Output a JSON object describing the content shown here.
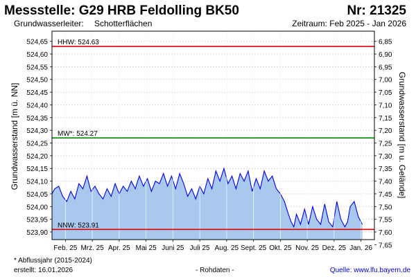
{
  "header": {
    "title": "Messstelle: G29 HRB Feldolling BK50",
    "number": "Nr: 21325",
    "aquifer_label": "Grundwasserleiter:",
    "aquifer_value": "Schotterflächen",
    "period": "Zeitraum: Feb 2025 - Jan 2026"
  },
  "footer": {
    "footnote": "* Abflussjahr (2015-2024)",
    "created": "erstellt:  16.01.2026",
    "raw": "- Rohdaten -",
    "source": "Quelle: www.lfu.bayern.de"
  },
  "colors": {
    "area_fill": "#a9c8ee",
    "line": "#0000ee",
    "hhw": "#dd0000",
    "nnw": "#dd0000",
    "mw": "#008800",
    "grid": "#cccccc"
  },
  "chart_data": {
    "type": "area",
    "ylabel": "Grundwasserstand [m ü. NN]",
    "ylabel_right": "Grundwasserstand [m u. Gelände]",
    "ylim": [
      523.87,
      524.69
    ],
    "yticks": [
      "524,65",
      "524,60",
      "524,55",
      "524,50",
      "524,45",
      "524,40",
      "524,35",
      "524,30",
      "524,25",
      "524,20",
      "524,15",
      "524,10",
      "524,05",
      "524,00",
      "523,95",
      "523,90"
    ],
    "yticks_right": [
      "6,85",
      "6,90",
      "6,95",
      "7,00",
      "7,05",
      "7,10",
      "7,15",
      "7,20",
      "7,25",
      "7,30",
      "7,35",
      "7,40",
      "7,45",
      "7,50",
      "7,55",
      "7,60",
      "7,65"
    ],
    "xticks": [
      "Feb. 25",
      "Mrz. 25",
      "Apr. 25",
      "Mai 25",
      "Juni 25",
      "Juli 25",
      "Aug. 25",
      "Sept. 25",
      "Okt. 25",
      "Nov. 25",
      "Dez. 25",
      "Jan. 26"
    ],
    "xrange_months": [
      0,
      12
    ],
    "reference_lines": [
      {
        "label": "HHW: 524.63",
        "value": 524.63,
        "color": "#dd0000"
      },
      {
        "label": "MW*: 524.27",
        "value": 524.27,
        "color": "#008800"
      },
      {
        "label": "NNW: 523.91",
        "value": 523.91,
        "color": "#dd0000"
      }
    ],
    "series": [
      {
        "x": [
          0.0,
          0.1,
          0.25,
          0.4,
          0.55,
          0.7,
          0.85,
          1.0,
          1.15,
          1.3,
          1.45,
          1.6,
          1.75,
          1.9,
          2.05,
          2.2,
          2.35,
          2.5,
          2.65,
          2.8,
          2.95,
          3.1,
          3.25,
          3.4,
          3.55,
          3.7,
          3.85,
          4.0,
          4.15,
          4.3,
          4.45,
          4.6,
          4.75,
          4.9,
          5.05,
          5.2,
          5.35,
          5.5,
          5.65,
          5.8,
          5.95,
          6.1,
          6.25,
          6.4,
          6.55,
          6.7,
          6.85,
          7.0,
          7.15,
          7.3,
          7.45,
          7.6,
          7.75,
          7.9,
          8.05,
          8.2,
          8.35,
          8.5,
          8.65,
          8.8,
          8.9,
          9.0,
          9.1,
          9.25,
          9.4,
          9.55,
          9.7,
          9.85,
          10.0,
          10.15,
          10.3,
          10.45,
          10.6,
          10.75,
          10.9,
          11.0,
          11.1,
          11.25,
          11.4,
          11.55
        ],
        "values": [
          524.05,
          524.07,
          524.08,
          524.04,
          524.02,
          524.06,
          524.03,
          524.09,
          524.07,
          524.12,
          524.06,
          524.08,
          524.05,
          524.03,
          524.07,
          524.04,
          524.09,
          524.05,
          524.08,
          524.06,
          524.1,
          524.07,
          524.12,
          524.08,
          524.11,
          524.06,
          524.1,
          524.09,
          524.13,
          524.08,
          524.12,
          524.07,
          524.13,
          524.09,
          524.04,
          524.07,
          524.03,
          524.08,
          524.05,
          524.11,
          524.07,
          524.14,
          524.1,
          524.15,
          524.09,
          524.12,
          524.07,
          524.13,
          524.1,
          524.14,
          524.06,
          524.11,
          524.07,
          524.14,
          524.1,
          524.12,
          524.07,
          524.05,
          524.02,
          523.97,
          523.94,
          523.92,
          523.97,
          523.93,
          523.99,
          523.93,
          524.0,
          523.95,
          523.93,
          524.01,
          523.94,
          523.92,
          524.02,
          523.95,
          523.92,
          523.94,
          524.0,
          524.02,
          523.96,
          523.93
        ]
      }
    ]
  }
}
